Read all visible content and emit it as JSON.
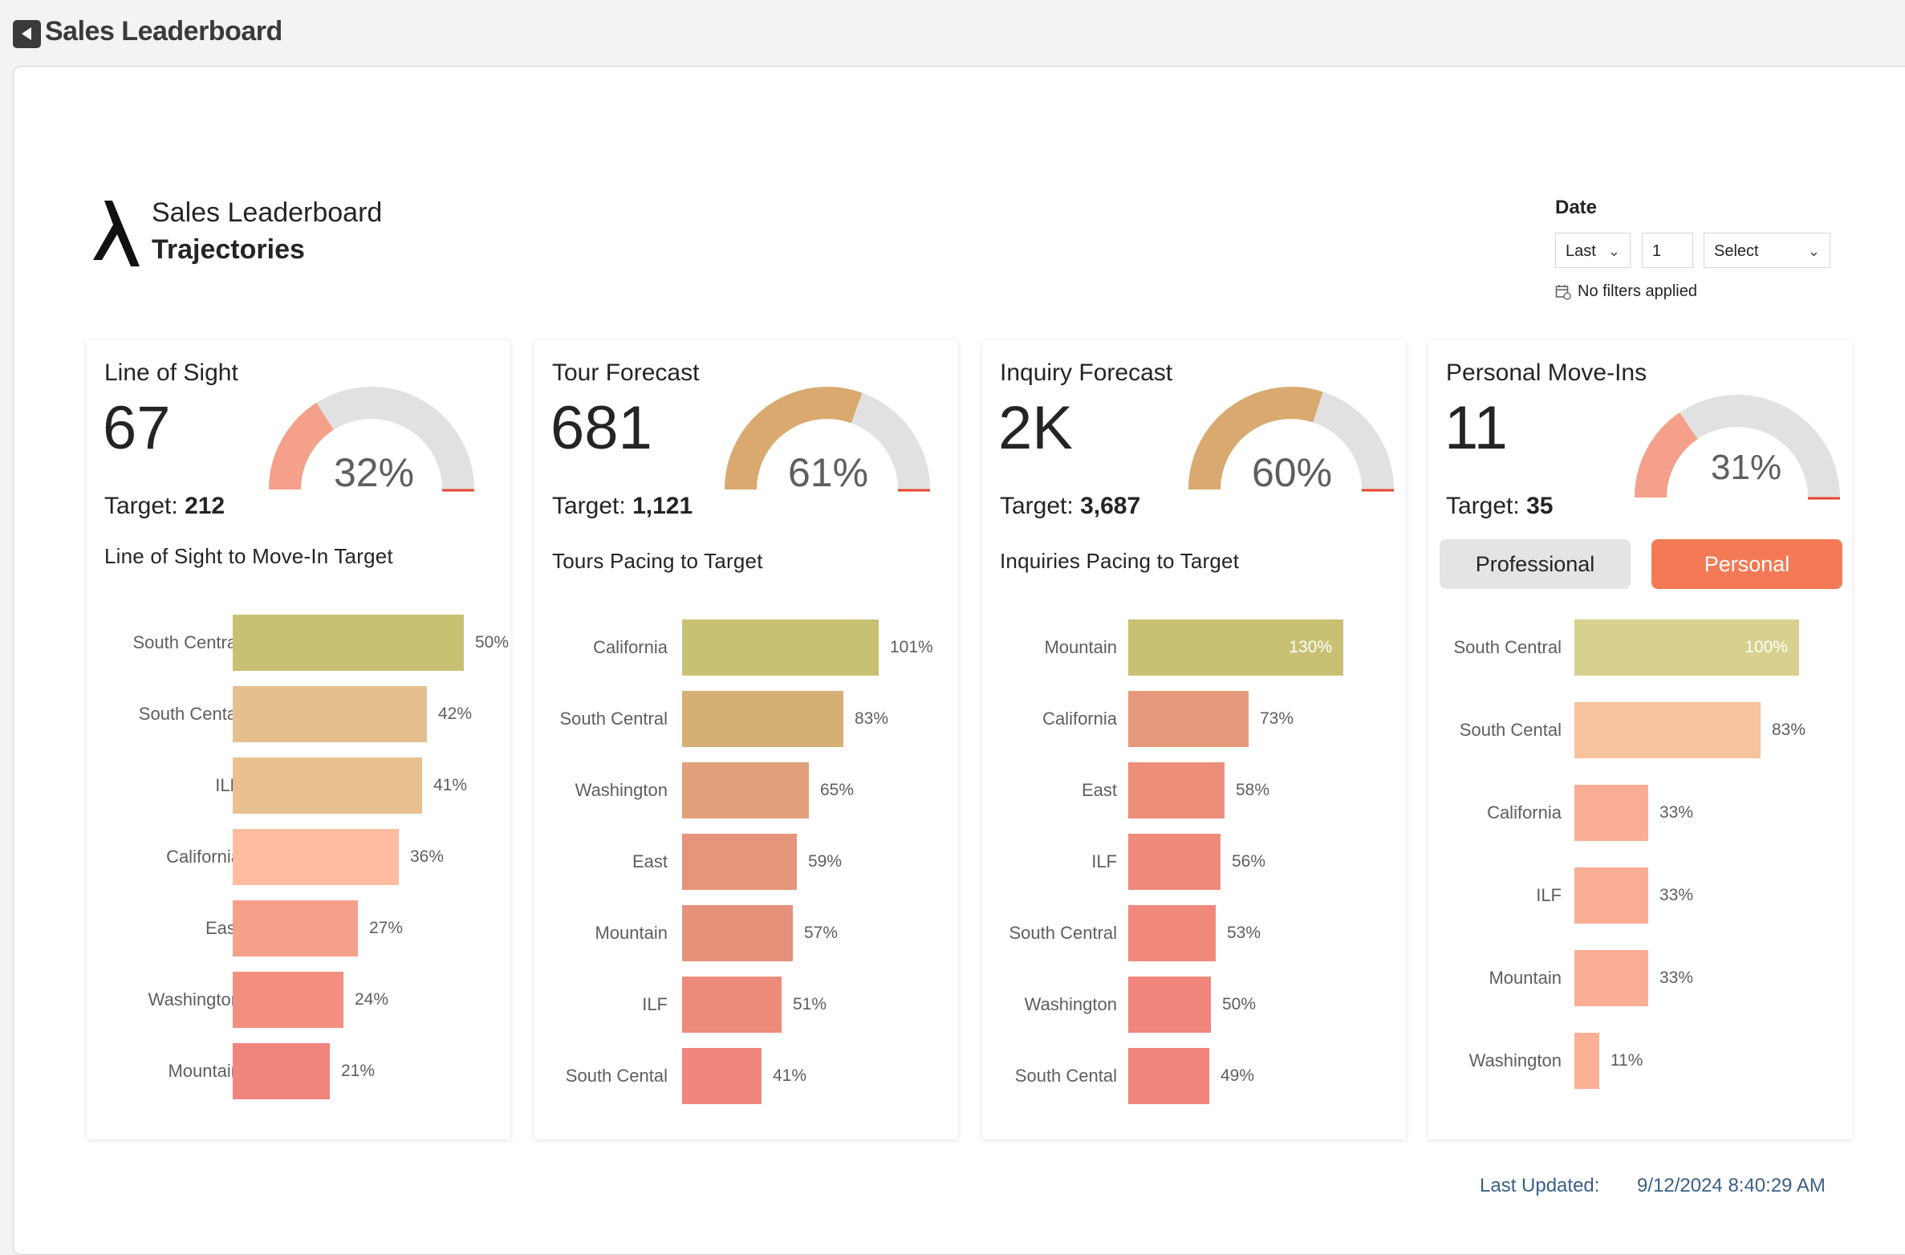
{
  "app": {
    "title": "Sales Leaderboard"
  },
  "header": {
    "subtitle": "Sales Leaderboard",
    "title": "Trajectories"
  },
  "filter": {
    "label": "Date",
    "relative": "Last",
    "count": "1",
    "unit_placeholder": "Select",
    "status": "No filters applied"
  },
  "footer": {
    "updated_label": "Last Updated:",
    "updated_value": "9/12/2024 8:40:29 AM"
  },
  "colors": {
    "gauge_track": "#e1e1e1",
    "target_marker": "#e8452c",
    "accent": "#f47a55"
  },
  "cards": [
    {
      "title": "Line of Sight",
      "value": "67",
      "target_label": "Target:",
      "target_value": "212",
      "gauge_pct_label": "32%",
      "gauge_fraction": 0.32,
      "gauge_color": "#f4a08a",
      "chart_title": "Line of Sight to Move-In Target"
    },
    {
      "title": "Tour Forecast",
      "value": "681",
      "target_label": "Target:",
      "target_value": "1,121",
      "gauge_pct_label": "61%",
      "gauge_fraction": 0.61,
      "gauge_color": "#d9a96f",
      "chart_title": "Tours Pacing to Target"
    },
    {
      "title": "Inquiry Forecast",
      "value": "2K",
      "target_label": "Target:",
      "target_value": "3,687",
      "gauge_pct_label": "60%",
      "gauge_fraction": 0.6,
      "gauge_color": "#d9a96f",
      "chart_title": "Inquiries Pacing to Target"
    },
    {
      "title": "Personal Move-Ins",
      "value": "11",
      "target_label": "Target:",
      "target_value": "35",
      "gauge_pct_label": "31%",
      "gauge_fraction": 0.31,
      "gauge_color": "#f4a08a",
      "toggle": {
        "professional": "Professional",
        "personal": "Personal",
        "selected": "Personal"
      }
    }
  ],
  "chart_data": [
    {
      "type": "bar",
      "orientation": "horizontal",
      "title": "Line of Sight to Move-In Target",
      "categories": [
        "South Central",
        "South Cental",
        "ILF",
        "California",
        "East",
        "Washington",
        "Mountain"
      ],
      "values": [
        50,
        42,
        41,
        36,
        27,
        24,
        21
      ],
      "labels": [
        "50%",
        "42%",
        "41%",
        "36%",
        "27%",
        "24%",
        "21%"
      ],
      "colors": [
        "#c8c173",
        "#e5c08e",
        "#e9c08f",
        "#ffbca0",
        "#f4a08a",
        "#f28f80",
        "#ef857c"
      ],
      "xlim": [
        0,
        50
      ]
    },
    {
      "type": "bar",
      "orientation": "horizontal",
      "title": "Tours Pacing to Target",
      "categories": [
        "California",
        "South Central",
        "Washington",
        "East",
        "Mountain",
        "ILF",
        "South Cental"
      ],
      "values": [
        101,
        83,
        65,
        59,
        57,
        51,
        41
      ],
      "labels": [
        "101%",
        "83%",
        "65%",
        "59%",
        "57%",
        "51%",
        "41%"
      ],
      "colors": [
        "#c8c173",
        "#d5b075",
        "#e2a07a",
        "#e5967a",
        "#e6927a",
        "#ec8b7b",
        "#f1867d"
      ],
      "xlim": [
        0,
        101
      ]
    },
    {
      "type": "bar",
      "orientation": "horizontal",
      "title": "Inquiries Pacing to Target",
      "categories": [
        "Mountain",
        "California",
        "East",
        "ILF",
        "South Central",
        "Washington",
        "South Cental"
      ],
      "values": [
        130,
        73,
        58,
        56,
        53,
        50,
        49
      ],
      "labels": [
        "130%",
        "73%",
        "58%",
        "56%",
        "53%",
        "50%",
        "49%"
      ],
      "colors": [
        "#c8c173",
        "#e79a7b",
        "#ef8d7b",
        "#ef8b7b",
        "#f0887c",
        "#f1867c",
        "#f1857c"
      ],
      "xlim": [
        0,
        130
      ],
      "label_inside": [
        true,
        false,
        false,
        false,
        false,
        false,
        false
      ]
    },
    {
      "type": "bar",
      "orientation": "horizontal",
      "title": "",
      "categories": [
        "South Central",
        "South Cental",
        "California",
        "ILF",
        "Mountain",
        "Washington"
      ],
      "values": [
        100,
        83,
        33,
        33,
        33,
        11
      ],
      "labels": [
        "100%",
        "83%",
        "33%",
        "33%",
        "33%",
        "11%"
      ],
      "colors": [
        "#d6d18e",
        "#f6c39d",
        "#f8ad94",
        "#f8ad94",
        "#f8ad94",
        "#fbb095"
      ],
      "xlim": [
        0,
        100
      ],
      "label_inside": [
        true,
        false,
        false,
        false,
        false,
        false
      ]
    }
  ]
}
